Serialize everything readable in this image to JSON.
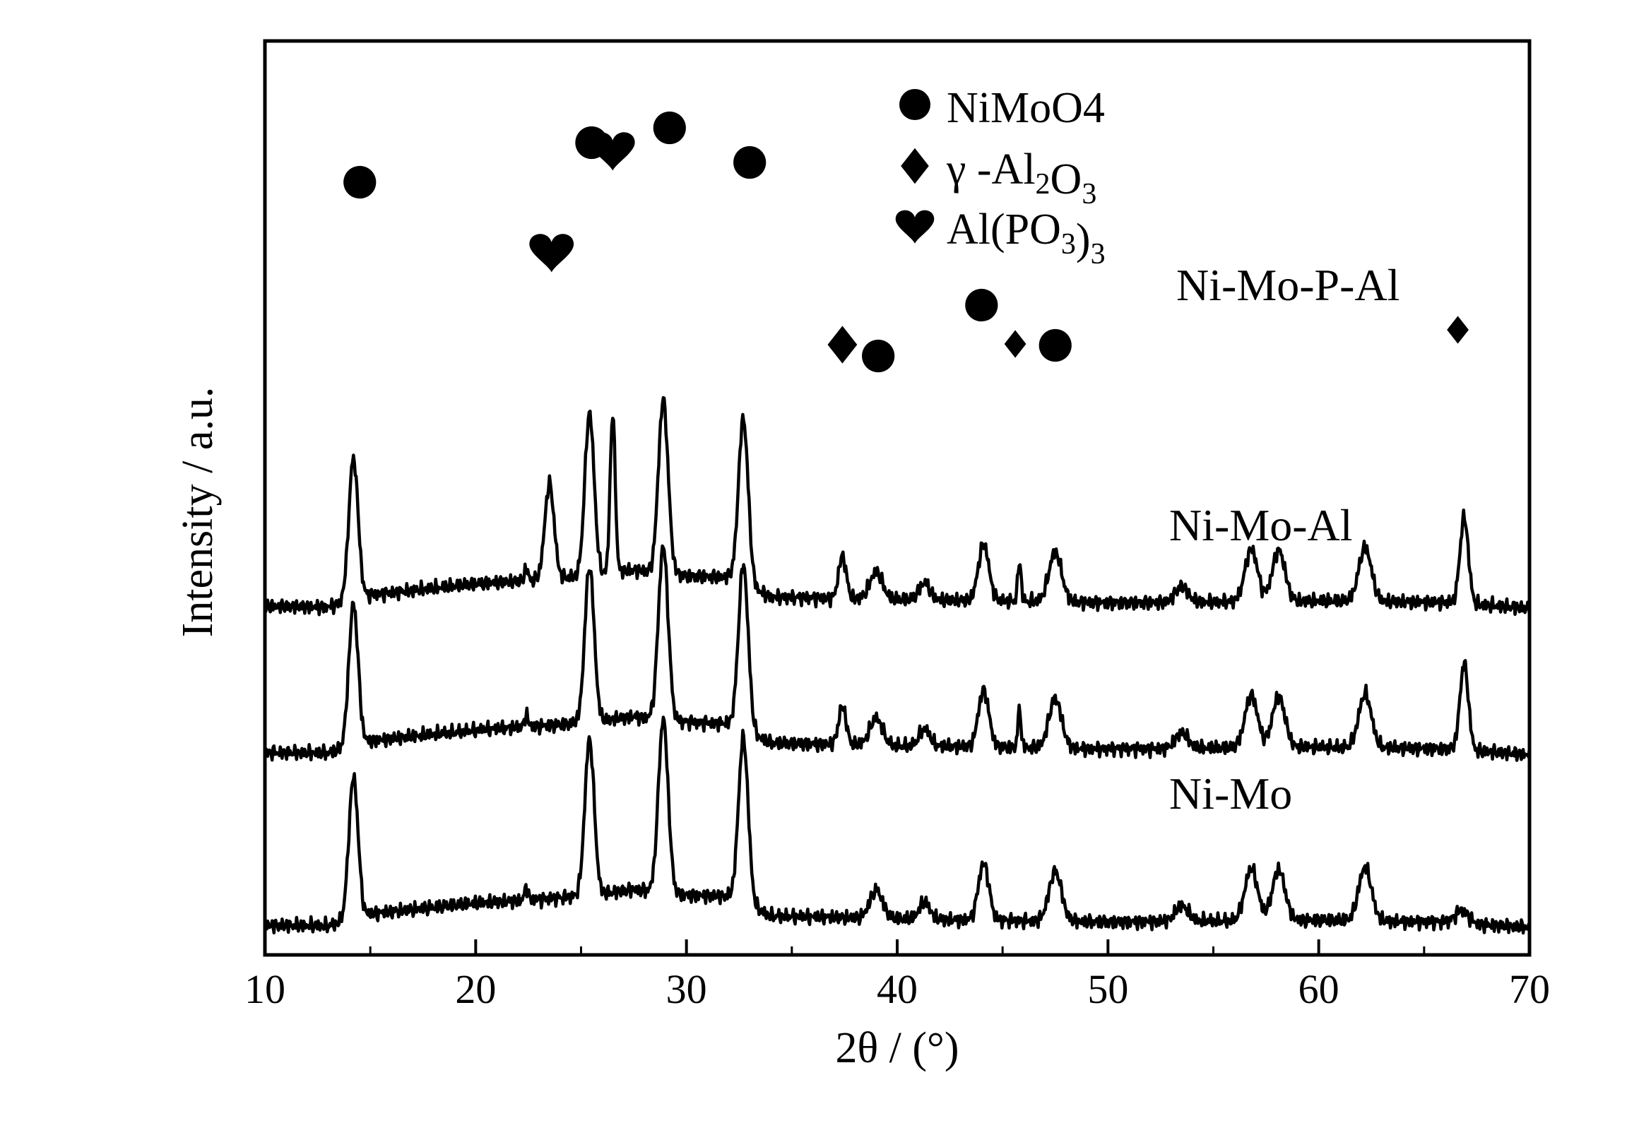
{
  "chart_data": {
    "type": "line",
    "title": "",
    "xlabel": "2θ / (°)",
    "ylabel": "Intensity / a.u.",
    "xlim": [
      10,
      70
    ],
    "xticks": [
      10,
      20,
      30,
      40,
      50,
      60,
      70
    ],
    "x_tick_labels": [
      "10",
      "20",
      "30",
      "40",
      "50",
      "60",
      "70"
    ],
    "y_ticks_shown": false,
    "grid": false,
    "legend_position": "top-center",
    "legend": [
      {
        "symbol": "circle",
        "label": "NiMoO4",
        "phase": "NiMoO4"
      },
      {
        "symbol": "diamond",
        "label": "γ -Al2O3",
        "phase": "gamma-Al2O3"
      },
      {
        "symbol": "heart",
        "label": "Al(PO3)3",
        "phase": "Al(PO3)3"
      }
    ],
    "series": [
      {
        "name": "Ni-Mo",
        "offset": 0,
        "baseline": [
          [
            10,
            15
          ],
          [
            13,
            14
          ],
          [
            15,
            31
          ],
          [
            20,
            46
          ],
          [
            24,
            54
          ],
          [
            26,
            60
          ],
          [
            27.5,
            66
          ],
          [
            30,
            58
          ],
          [
            32,
            56
          ],
          [
            34,
            28
          ],
          [
            40,
            24
          ],
          [
            50,
            20
          ],
          [
            60,
            22
          ],
          [
            66,
            20
          ],
          [
            70,
            12
          ]
        ],
        "peaks": [
          [
            14.2,
            200,
            0.22
          ],
          [
            22.4,
            18,
            0.08
          ],
          [
            25.4,
            220,
            0.22
          ],
          [
            28.9,
            245,
            0.23
          ],
          [
            32.7,
            234,
            0.23
          ],
          [
            39.0,
            40,
            0.3
          ],
          [
            41.3,
            24,
            0.25
          ],
          [
            44.1,
            80,
            0.25
          ],
          [
            47.5,
            70,
            0.3
          ],
          [
            53.5,
            22,
            0.3
          ],
          [
            56.8,
            74,
            0.3
          ],
          [
            58.1,
            72,
            0.3
          ],
          [
            62.2,
            76,
            0.3
          ],
          [
            66.8,
            18,
            0.3
          ]
        ]
      },
      {
        "name": "Ni-Mo-Al",
        "offset": 245,
        "baseline": [
          [
            10,
            15
          ],
          [
            13,
            14
          ],
          [
            15,
            31
          ],
          [
            20,
            46
          ],
          [
            24,
            54
          ],
          [
            26,
            60
          ],
          [
            27.5,
            66
          ],
          [
            30,
            58
          ],
          [
            32,
            56
          ],
          [
            34,
            28
          ],
          [
            40,
            24
          ],
          [
            50,
            20
          ],
          [
            60,
            22
          ],
          [
            66,
            20
          ],
          [
            70,
            12
          ]
        ],
        "peaks": [
          [
            14.2,
            200,
            0.22
          ],
          [
            22.4,
            18,
            0.08
          ],
          [
            25.4,
            220,
            0.22
          ],
          [
            28.9,
            245,
            0.23
          ],
          [
            32.7,
            234,
            0.23
          ],
          [
            37.4,
            54,
            0.18
          ],
          [
            39.0,
            38,
            0.3
          ],
          [
            41.3,
            24,
            0.25
          ],
          [
            44.1,
            80,
            0.25
          ],
          [
            45.8,
            52,
            0.08
          ],
          [
            47.5,
            70,
            0.3
          ],
          [
            53.5,
            22,
            0.3
          ],
          [
            56.8,
            74,
            0.3
          ],
          [
            58.1,
            72,
            0.3
          ],
          [
            62.2,
            76,
            0.3
          ],
          [
            66.9,
            122,
            0.2
          ]
        ]
      },
      {
        "name": "Ni-Mo-P-Al",
        "offset": 452,
        "baseline": [
          [
            10,
            15
          ],
          [
            13,
            14
          ],
          [
            15,
            31
          ],
          [
            20,
            46
          ],
          [
            24,
            54
          ],
          [
            26,
            60
          ],
          [
            27.5,
            66
          ],
          [
            30,
            58
          ],
          [
            32,
            56
          ],
          [
            34,
            28
          ],
          [
            40,
            24
          ],
          [
            50,
            20
          ],
          [
            60,
            22
          ],
          [
            66,
            20
          ],
          [
            70,
            12
          ]
        ],
        "peaks": [
          [
            14.2,
            200,
            0.22
          ],
          [
            22.4,
            18,
            0.08
          ],
          [
            23.5,
            135,
            0.22
          ],
          [
            25.4,
            230,
            0.22
          ],
          [
            26.5,
            225,
            0.12
          ],
          [
            28.9,
            245,
            0.23
          ],
          [
            32.7,
            234,
            0.23
          ],
          [
            37.4,
            60,
            0.18
          ],
          [
            39.0,
            38,
            0.3
          ],
          [
            41.3,
            24,
            0.25
          ],
          [
            44.1,
            80,
            0.25
          ],
          [
            45.8,
            56,
            0.08
          ],
          [
            47.5,
            70,
            0.3
          ],
          [
            53.5,
            22,
            0.3
          ],
          [
            56.8,
            74,
            0.3
          ],
          [
            58.1,
            72,
            0.3
          ],
          [
            62.2,
            76,
            0.3
          ],
          [
            66.9,
            122,
            0.2
          ]
        ]
      }
    ],
    "annotations": [
      {
        "series": "Ni-Mo-P-Al",
        "symbol": "circle",
        "x": 14.5
      },
      {
        "series": "Ni-Mo-P-Al",
        "symbol": "heart",
        "x": 23.6
      },
      {
        "series": "Ni-Mo-P-Al",
        "symbol": "circle",
        "x": 25.5
      },
      {
        "series": "Ni-Mo-P-Al",
        "symbol": "heart",
        "x": 26.5
      },
      {
        "series": "Ni-Mo-P-Al",
        "symbol": "circle",
        "x": 29.2
      },
      {
        "series": "Ni-Mo-P-Al",
        "symbol": "circle",
        "x": 33.0
      },
      {
        "series": "Ni-Mo-P-Al",
        "symbol": "diamond",
        "x": 37.4
      },
      {
        "series": "Ni-Mo-P-Al",
        "symbol": "circle",
        "x": 39.1
      },
      {
        "series": "Ni-Mo-P-Al",
        "symbol": "circle",
        "x": 44.0
      },
      {
        "series": "Ni-Mo-P-Al",
        "symbol": "diamond",
        "x": 45.6
      },
      {
        "series": "Ni-Mo-P-Al",
        "symbol": "circle",
        "x": 47.5
      },
      {
        "series": "Ni-Mo-P-Al",
        "symbol": "diamond",
        "x": 66.6
      }
    ]
  }
}
